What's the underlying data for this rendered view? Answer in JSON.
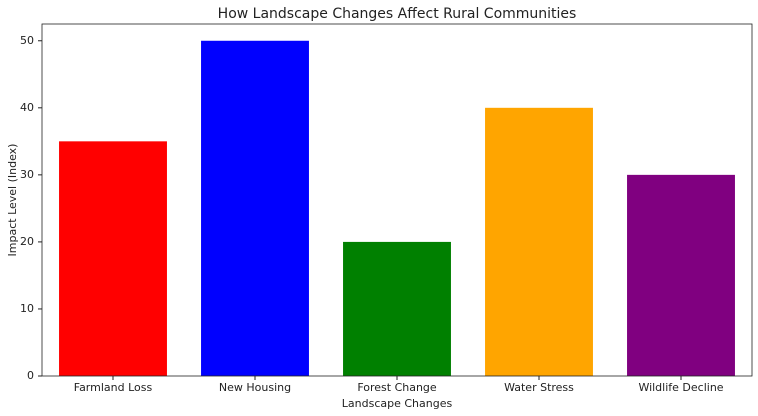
{
  "chart_data": {
    "type": "bar",
    "title": "How Landscape Changes Affect Rural Communities",
    "x_label": "Landscape Changes",
    "y_label": "Impact Level (Index)",
    "categories": [
      "Farmland Loss",
      "New Housing",
      "Forest Change",
      "Water Stress",
      "Wildlife Decline"
    ],
    "values": [
      35,
      50,
      20,
      40,
      30
    ],
    "colors": [
      "#ff0000",
      "#0000ff",
      "#008000",
      "#ffa500",
      "#800080"
    ],
    "ylim": [
      0,
      52.5
    ],
    "yticks": [
      0,
      10,
      20,
      30,
      40,
      50
    ],
    "grid": false
  }
}
